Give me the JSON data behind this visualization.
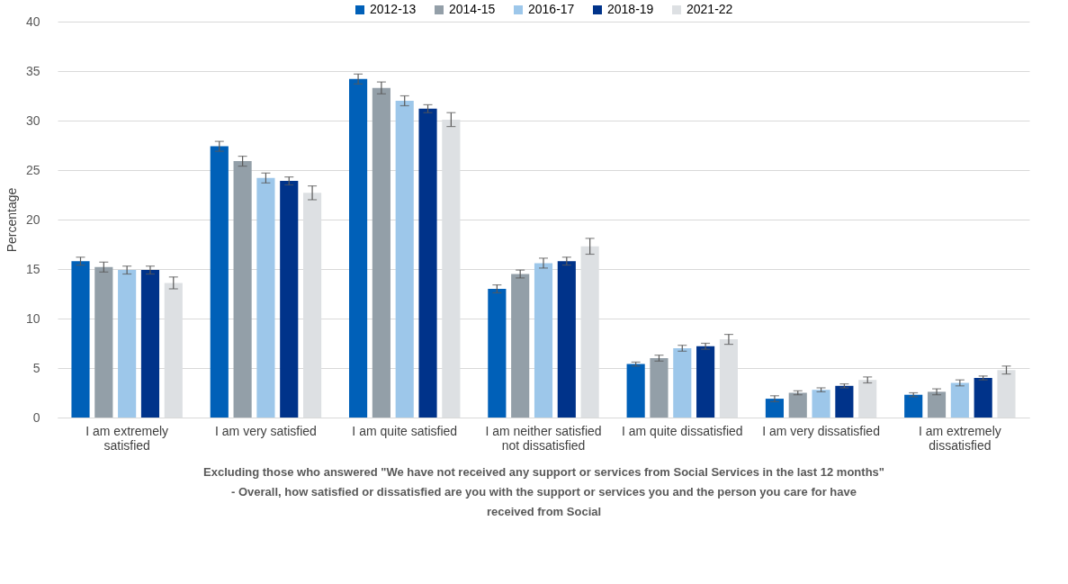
{
  "chart_data": {
    "type": "bar",
    "ylabel": "Percentage",
    "xlabel": "Excluding those who answered \"We have not received any support or services from Social Services in the last 12 months\" - Overall, how satisfied or dissatisfied are you with the support or services you and the person you care for have received from Social",
    "categories": [
      "I am extremely satisfied",
      "I am very satisfied",
      "I am quite satisfied",
      "I am neither satisfied not dissatisfied",
      "I am quite dissatisfied",
      "I am very dissatisfied",
      "I am extremely dissatisfied"
    ],
    "series": [
      {
        "name": "2012-13",
        "color": "#0060b8",
        "values": [
          15.8,
          27.4,
          34.2,
          13.0,
          5.4,
          1.9,
          2.3
        ],
        "errors": [
          0.4,
          0.5,
          0.5,
          0.4,
          0.2,
          0.3,
          0.2
        ]
      },
      {
        "name": "2014-15",
        "color": "#939fa8",
        "values": [
          15.2,
          25.9,
          33.3,
          14.5,
          6.0,
          2.5,
          2.6
        ],
        "errors": [
          0.5,
          0.5,
          0.6,
          0.4,
          0.3,
          0.2,
          0.3
        ]
      },
      {
        "name": "2016-17",
        "color": "#9dc7ea",
        "values": [
          14.9,
          24.2,
          32.0,
          15.6,
          7.0,
          2.8,
          3.5
        ],
        "errors": [
          0.4,
          0.5,
          0.5,
          0.5,
          0.3,
          0.2,
          0.3
        ]
      },
      {
        "name": "2018-19",
        "color": "#00338a",
        "values": [
          14.9,
          23.9,
          31.2,
          15.8,
          7.2,
          3.2,
          4.0
        ],
        "errors": [
          0.4,
          0.4,
          0.4,
          0.4,
          0.3,
          0.2,
          0.2
        ]
      },
      {
        "name": "2021-22",
        "color": "#dde0e3",
        "values": [
          13.6,
          22.7,
          30.1,
          17.3,
          7.9,
          3.8,
          4.8
        ],
        "errors": [
          0.6,
          0.7,
          0.7,
          0.8,
          0.5,
          0.3,
          0.4
        ]
      }
    ],
    "ylim": [
      0,
      40
    ],
    "yticks": [
      0,
      5,
      10,
      15,
      20,
      25,
      30,
      35,
      40
    ],
    "grid": "y",
    "legend": "top"
  }
}
